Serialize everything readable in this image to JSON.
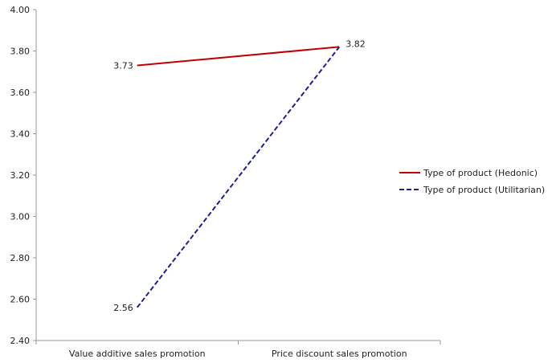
{
  "chart_data": {
    "type": "line",
    "categories": [
      "Value additive sales promotion",
      "Price discount sales promotion"
    ],
    "series": [
      {
        "name": "Type of product (Hedonic)",
        "values": [
          3.73,
          3.82
        ],
        "color": "#c00000",
        "dash": "solid"
      },
      {
        "name": "Type of product (Utilitarian)",
        "values": [
          2.56,
          3.82
        ],
        "color": "#1f1f8f",
        "dash": "dashed"
      }
    ],
    "data_labels": [
      {
        "series": 0,
        "point": 0,
        "text": "3.73"
      },
      {
        "series": 0,
        "point": 1,
        "text": "3.82"
      },
      {
        "series": 1,
        "point": 0,
        "text": "2.56"
      }
    ],
    "y_ticks": [
      "2.40",
      "2.60",
      "2.80",
      "3.00",
      "3.20",
      "3.40",
      "3.60",
      "3.80",
      "4.00"
    ],
    "ylim": [
      2.4,
      4.0
    ],
    "xlabel": "",
    "ylabel": "",
    "title": "",
    "grid": false,
    "legend_position": "right"
  }
}
